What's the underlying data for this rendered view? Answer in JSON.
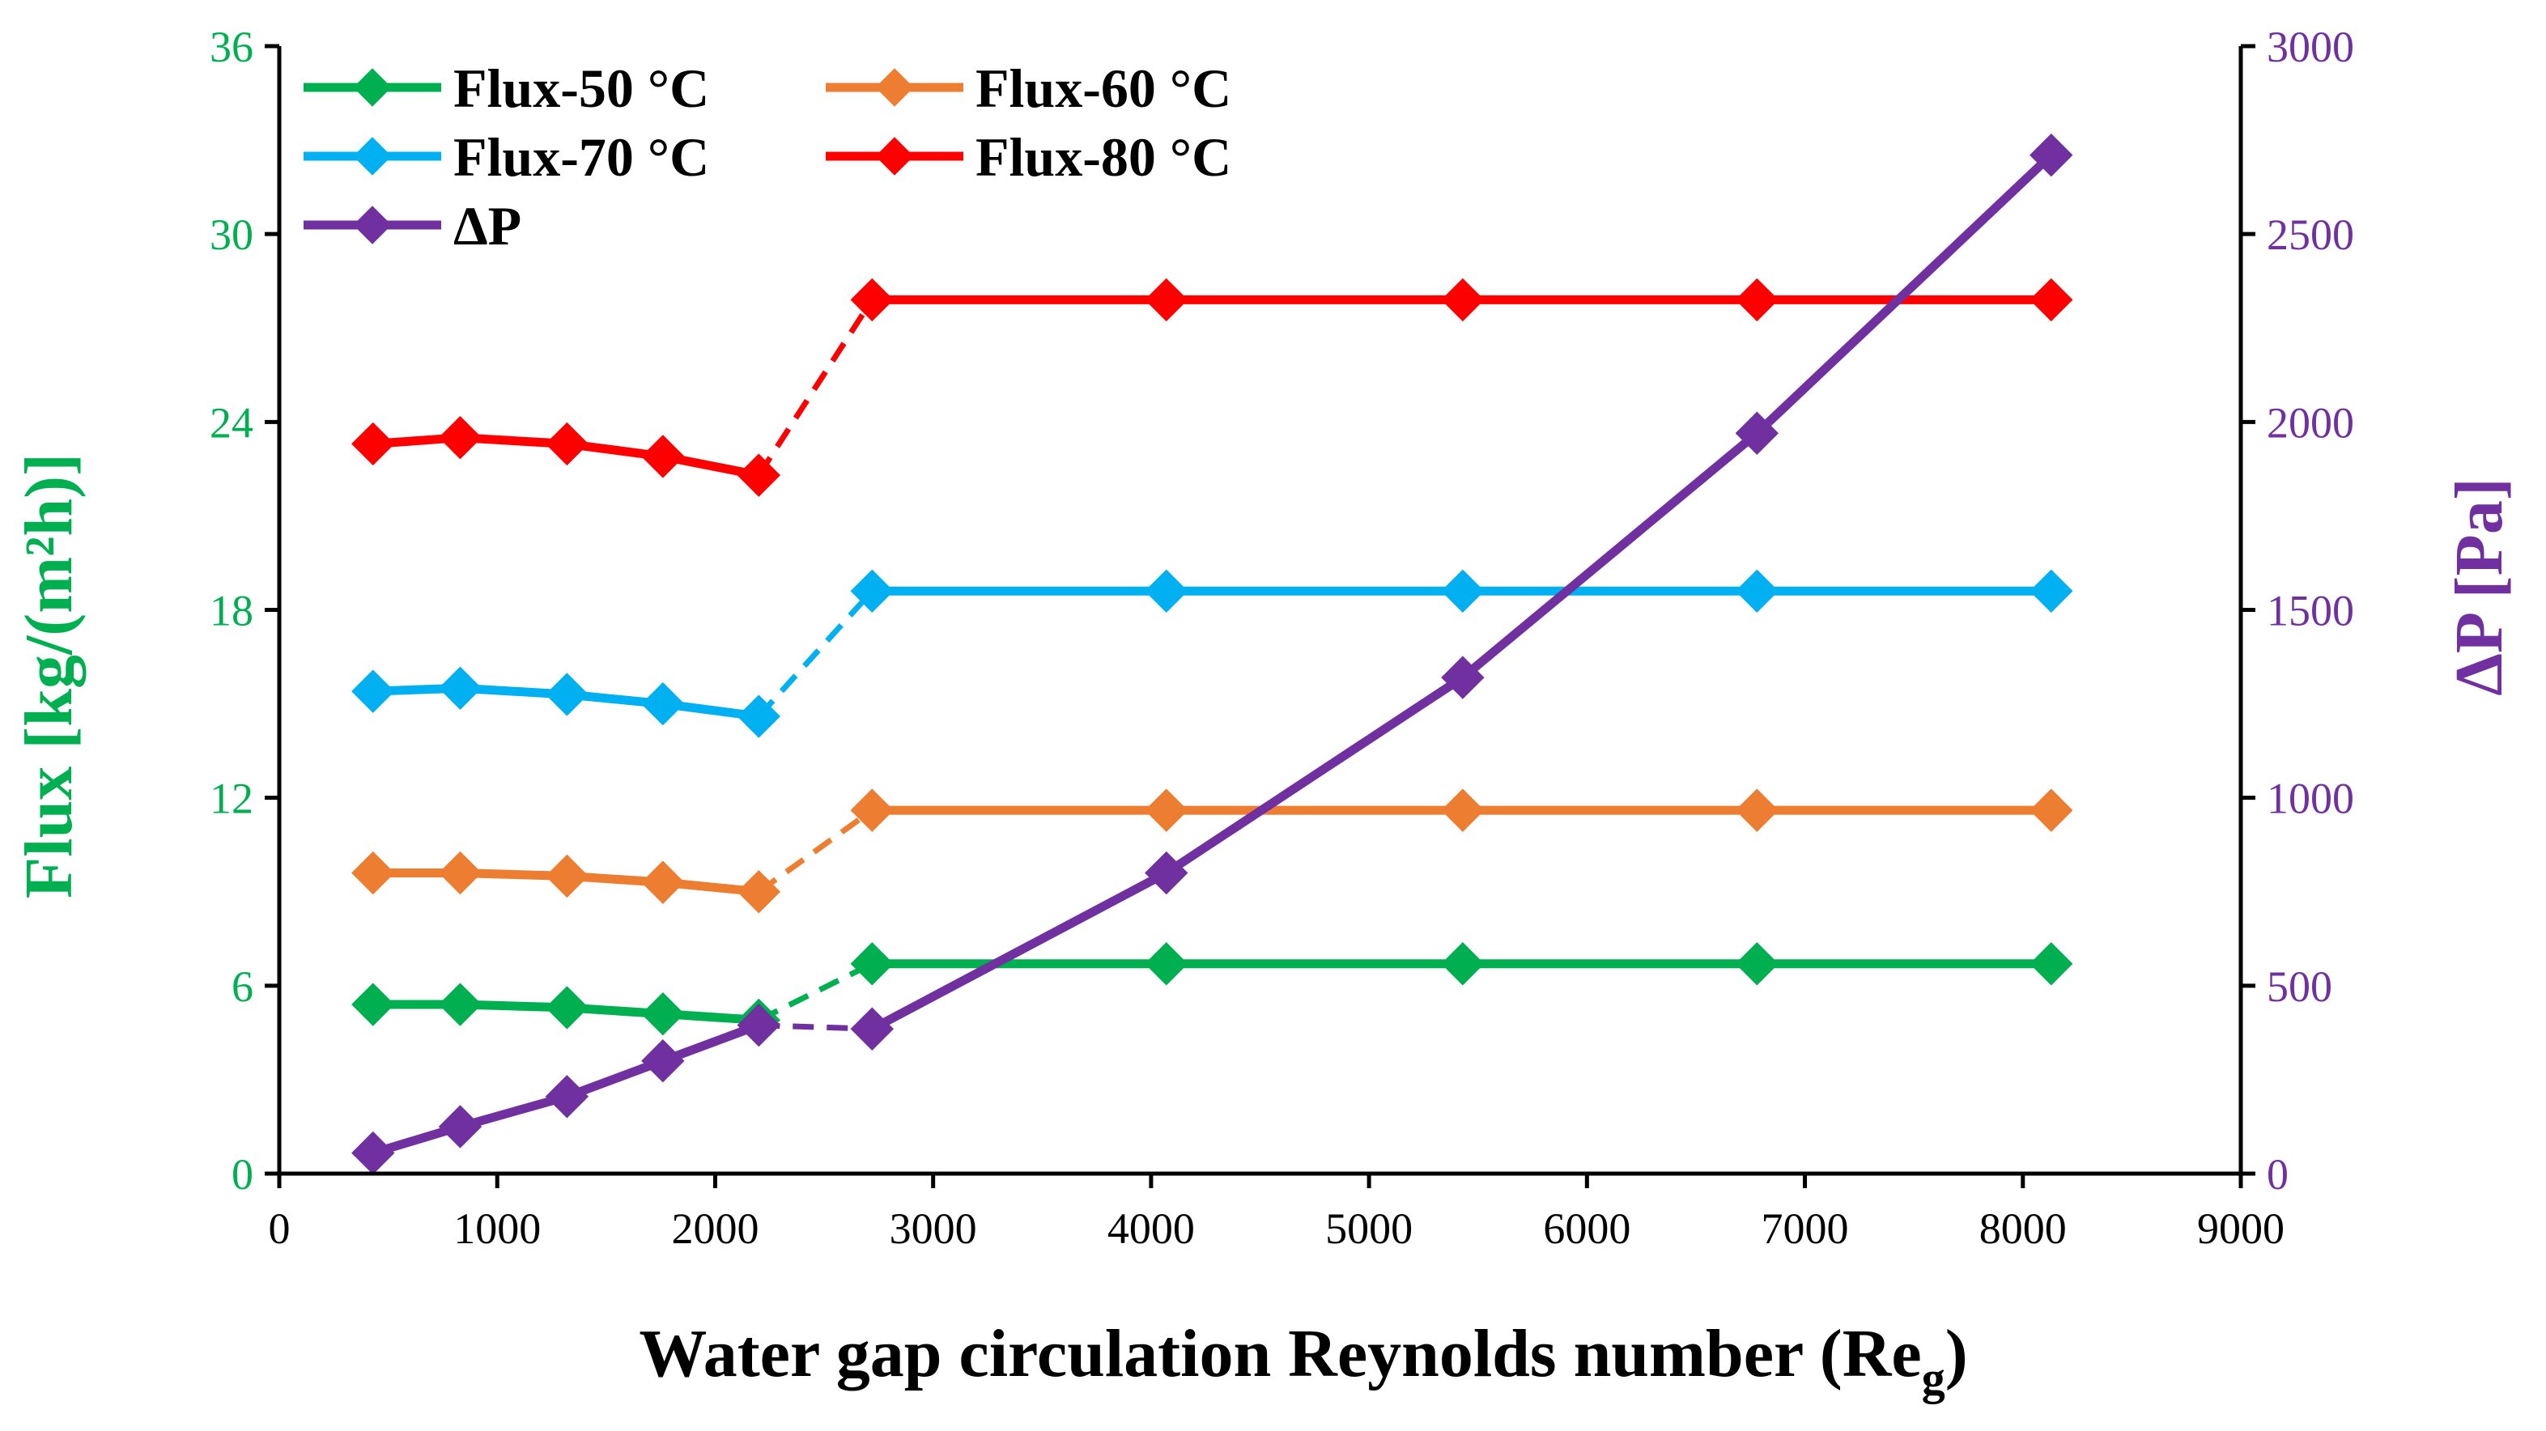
{
  "chart_data": {
    "type": "line",
    "title": "",
    "xlabel": "Water gap circulation Reynolds number (Re",
    "xlabel_subscript": "g",
    "xlabel_close": ")",
    "ylabel_left": "Flux [kg/(m²h)]",
    "ylabel_right": "ΔP [Pa]",
    "xlim": [
      0,
      9000
    ],
    "ylim_left": [
      0,
      36
    ],
    "ylim_right": [
      0,
      3000
    ],
    "x_ticks": [
      "0",
      "1000",
      "2000",
      "3000",
      "4000",
      "5000",
      "6000",
      "7000",
      "8000",
      "9000"
    ],
    "y_left_ticks": [
      "0",
      "6",
      "12",
      "18",
      "24",
      "30",
      "36"
    ],
    "y_right_ticks": [
      "0",
      "500",
      "1000",
      "1500",
      "2000",
      "2500",
      "3000"
    ],
    "x_laminar": [
      430,
      830,
      1320,
      1760,
      2200
    ],
    "x_turbulent": [
      2720,
      4070,
      5430,
      6780,
      8130
    ],
    "series": [
      {
        "name": "Flux-50 °C",
        "axis": "left",
        "color": "#00b050",
        "laminar": [
          5.4,
          5.4,
          5.3,
          5.1,
          4.9
        ],
        "turbulent": [
          6.7,
          6.7,
          6.7,
          6.7,
          6.7
        ]
      },
      {
        "name": "Flux-60 °C",
        "axis": "left",
        "color": "#ed7d31",
        "laminar": [
          9.6,
          9.6,
          9.5,
          9.3,
          9.0
        ],
        "turbulent": [
          11.6,
          11.6,
          11.6,
          11.6,
          11.6
        ]
      },
      {
        "name": "Flux-70 °C",
        "axis": "left",
        "color": "#00b0f0",
        "laminar": [
          15.4,
          15.5,
          15.3,
          15.0,
          14.6
        ],
        "turbulent": [
          18.6,
          18.6,
          18.6,
          18.6,
          18.6
        ]
      },
      {
        "name": "Flux-80 °C",
        "axis": "left",
        "color": "#ff0000",
        "laminar": [
          23.3,
          23.5,
          23.3,
          22.9,
          22.3
        ],
        "turbulent": [
          27.9,
          27.9,
          27.9,
          27.9,
          27.9
        ]
      },
      {
        "name": "ΔP",
        "axis": "right",
        "color": "#7030a0",
        "laminar": [
          55,
          125,
          205,
          300,
          395
        ],
        "turbulent": [
          385,
          800,
          1320,
          1970,
          2710
        ]
      }
    ],
    "legend_position": "top-left",
    "grid": false,
    "colors": {
      "left_axis": "#00b050",
      "right_axis": "#7030a0",
      "axes": "#000000"
    }
  }
}
